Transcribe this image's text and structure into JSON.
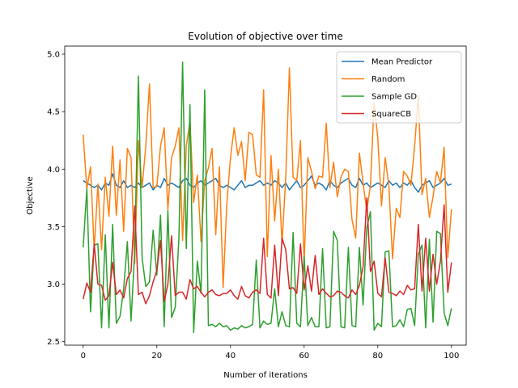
{
  "chart_data": {
    "type": "line",
    "title": "Evolution of objective over time",
    "xlabel": "Number of iterations",
    "ylabel": "Objective",
    "xlim": [
      -5,
      104
    ],
    "ylim": [
      2.47,
      5.07
    ],
    "xticks": [
      0,
      20,
      40,
      60,
      80,
      100
    ],
    "yticks": [
      2.5,
      3.0,
      3.5,
      4.0,
      4.5,
      5.0
    ],
    "xtick_labels": [
      "0",
      "20",
      "40",
      "60",
      "80",
      "100"
    ],
    "ytick_labels": [
      "2.5",
      "3.0",
      "3.5",
      "4.0",
      "4.5",
      "5.0"
    ],
    "grid": false,
    "legend_position": "top-right",
    "series": [
      {
        "name": "Mean Predictor",
        "color": "#1f77b4",
        "values": [
          3.9,
          3.88,
          3.86,
          3.84,
          3.86,
          3.82,
          3.88,
          3.86,
          3.96,
          3.86,
          3.84,
          3.9,
          3.84,
          3.86,
          3.84,
          3.88,
          3.84,
          3.86,
          3.88,
          3.82,
          3.86,
          3.84,
          3.92,
          3.86,
          3.88,
          3.86,
          3.84,
          3.9,
          3.92,
          3.86,
          3.84,
          3.88,
          3.9,
          3.86,
          3.88,
          3.9,
          3.92,
          3.86,
          3.84,
          3.86,
          3.84,
          3.82,
          3.86,
          3.9,
          3.84,
          3.86,
          3.86,
          3.88,
          3.9,
          3.86,
          3.88,
          3.86,
          3.9,
          3.88,
          3.84,
          3.88,
          3.82,
          3.86,
          3.9,
          3.84,
          3.86,
          3.9,
          3.94,
          3.86,
          3.88,
          3.86,
          3.82,
          3.9,
          3.86,
          3.84,
          3.88,
          3.9,
          3.92,
          3.86,
          3.84,
          3.92,
          3.86,
          3.88,
          3.84,
          3.86,
          3.88,
          3.86,
          3.84,
          3.9,
          3.86,
          3.88,
          3.84,
          3.88,
          3.86,
          3.9,
          3.84,
          3.8,
          3.86,
          3.88,
          3.9,
          3.84,
          3.86,
          3.88,
          3.92,
          3.86,
          3.87
        ]
      },
      {
        "name": "Random",
        "color": "#ff7f0e",
        "values": [
          4.3,
          3.83,
          4.02,
          3.3,
          3.87,
          3.3,
          3.93,
          3.59,
          4.2,
          3.6,
          4.08,
          3.46,
          4.18,
          4.1,
          3.18,
          4.25,
          3.84,
          4.2,
          4.74,
          3.84,
          3.85,
          4.2,
          4.36,
          3.65,
          4.1,
          4.2,
          4.36,
          3.38,
          4.2,
          4.42,
          3.71,
          3.95,
          3.37,
          3.9,
          4.01,
          4.18,
          3.43,
          4.02,
          2.97,
          3.7,
          4.1,
          4.36,
          4.12,
          4.24,
          3.9,
          4.32,
          4.3,
          3.95,
          3.93,
          4.69,
          3.24,
          4.12,
          3.55,
          4.0,
          3.35,
          3.93,
          4.88,
          3.93,
          3.9,
          4.25,
          3.18,
          4.1,
          3.98,
          3.83,
          3.94,
          3.93,
          4.4,
          3.84,
          4.06,
          3.76,
          3.93,
          4.0,
          3.98,
          3.56,
          3.4,
          4.14,
          3.88,
          3.64,
          3.86,
          4.58,
          4.27,
          3.68,
          4.1,
          3.86,
          3.22,
          3.66,
          3.58,
          3.98,
          3.94,
          3.86,
          4.2,
          4.64,
          3.78,
          3.92,
          3.58,
          3.76,
          3.98,
          3.88,
          4.19,
          3.23,
          3.65
        ]
      },
      {
        "name": "Sample GD",
        "color": "#2ca02c",
        "values": [
          3.32,
          3.83,
          2.76,
          3.34,
          3.35,
          2.62,
          3.43,
          2.62,
          3.52,
          2.66,
          2.72,
          2.96,
          3.37,
          2.68,
          3.29,
          4.81,
          3.23,
          2.98,
          3.02,
          3.47,
          3.08,
          3.6,
          2.63,
          3.64,
          2.71,
          2.8,
          3.4,
          4.93,
          3.31,
          4.56,
          2.58,
          3.2,
          2.92,
          4.69,
          2.64,
          2.65,
          2.63,
          2.66,
          2.63,
          2.64,
          2.6,
          2.62,
          2.61,
          2.64,
          2.62,
          2.63,
          2.65,
          3.21,
          2.62,
          2.68,
          2.65,
          2.66,
          2.96,
          2.63,
          2.76,
          2.64,
          2.63,
          3.45,
          2.66,
          2.63,
          3.24,
          2.64,
          2.71,
          2.63,
          2.63,
          3.31,
          2.62,
          2.63,
          3.46,
          3.38,
          2.63,
          2.62,
          3.32,
          2.64,
          2.63,
          3.32,
          2.82,
          3.49,
          3.63,
          2.6,
          2.66,
          2.63,
          3.28,
          3.29,
          2.63,
          2.64,
          2.69,
          2.63,
          2.78,
          2.79,
          2.64,
          3.26,
          3.34,
          2.62,
          3.39,
          2.67,
          3.46,
          3.44,
          2.75,
          2.64,
          2.79
        ]
      },
      {
        "name": "SquareCB",
        "color": "#d62728",
        "values": [
          2.87,
          3.01,
          2.93,
          3.35,
          3.0,
          2.99,
          2.86,
          2.9,
          3.19,
          2.91,
          2.95,
          2.88,
          3.05,
          3.11,
          3.68,
          2.91,
          2.93,
          2.83,
          2.9,
          3.02,
          3.12,
          3.38,
          2.85,
          3.0,
          3.42,
          2.9,
          2.93,
          2.93,
          2.87,
          3.04,
          2.96,
          2.98,
          2.93,
          2.89,
          2.93,
          2.95,
          2.91,
          2.9,
          2.92,
          2.92,
          2.95,
          2.9,
          2.87,
          2.98,
          2.9,
          2.88,
          2.93,
          2.95,
          2.92,
          3.4,
          2.91,
          2.88,
          3.34,
          2.9,
          3.4,
          3.3,
          2.96,
          2.97,
          2.92,
          3.35,
          2.95,
          3.16,
          2.94,
          3.25,
          2.91,
          2.96,
          2.92,
          2.89,
          2.9,
          2.94,
          2.93,
          2.9,
          2.88,
          2.95,
          2.91,
          2.99,
          3.15,
          3.75,
          3.11,
          3.2,
          2.92,
          2.89,
          3.23,
          2.93,
          2.92,
          2.9,
          2.94,
          2.91,
          2.99,
          2.95,
          2.96,
          3.52,
          2.94,
          3.4,
          2.94,
          3.26,
          3.0,
          3.2,
          3.69,
          2.93,
          3.19
        ]
      }
    ]
  }
}
